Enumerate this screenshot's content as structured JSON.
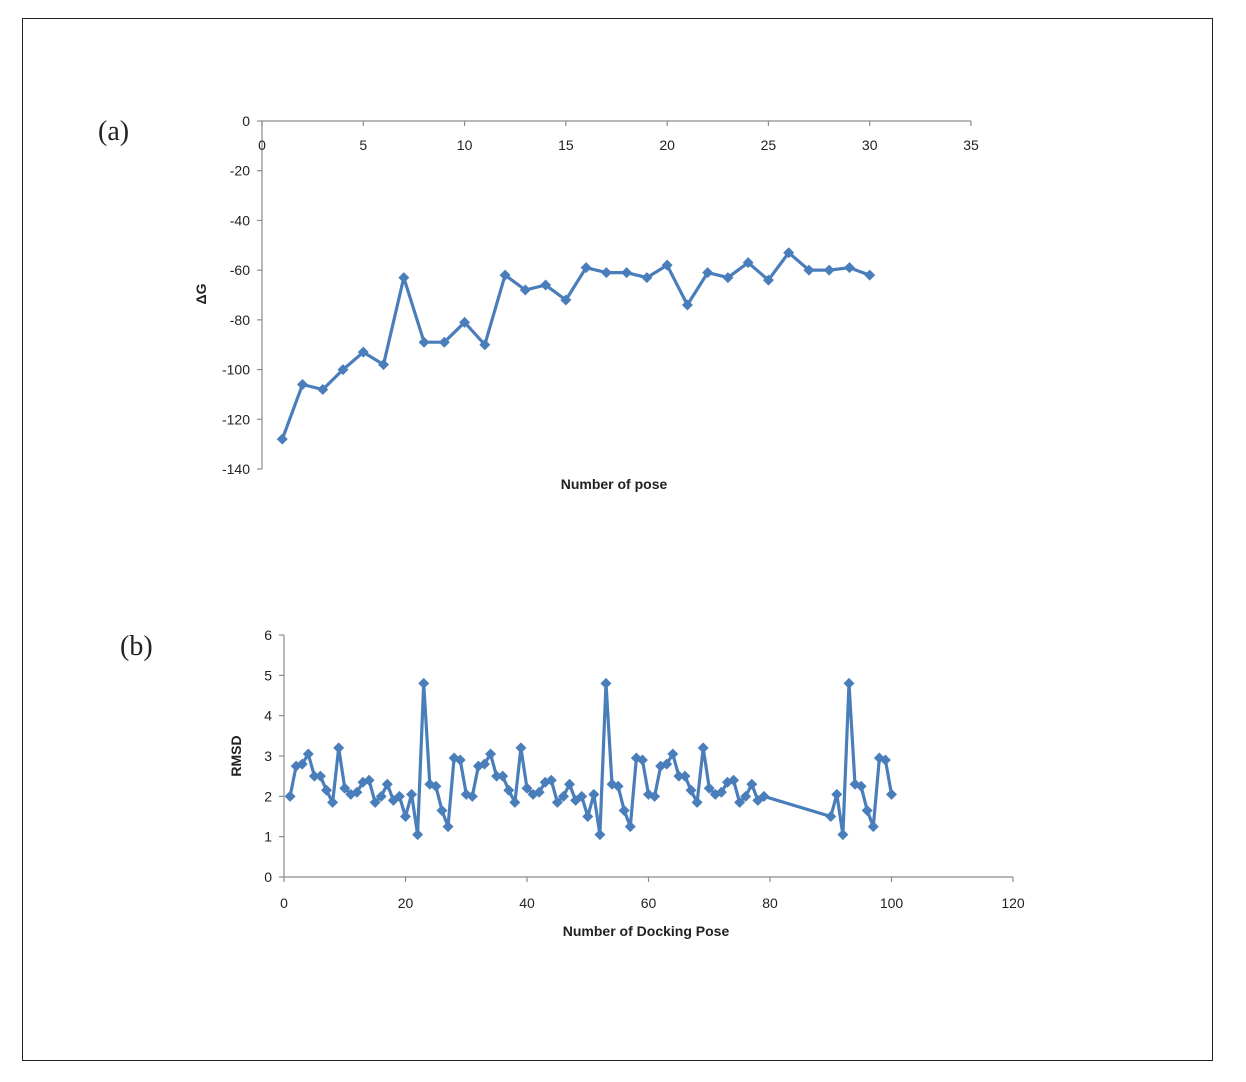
{
  "chart_data": [
    {
      "type": "line",
      "panel_label": "(a)",
      "xlabel": "Number of pose",
      "ylabel": "ΔG",
      "xlim": [
        0,
        35
      ],
      "ylim": [
        -140,
        0
      ],
      "xticks": [
        "0",
        "5",
        "10",
        "15",
        "20",
        "25",
        "30",
        "35"
      ],
      "yticks": [
        "0",
        "-20",
        "-40",
        "-60",
        "-80",
        "-100",
        "-120",
        "-140"
      ],
      "x_axis_position": "top",
      "color": "#4a7ebb",
      "marker": "diamond",
      "grid": false,
      "series": [
        {
          "x": [
            1,
            2,
            3,
            4,
            5,
            6,
            7,
            8,
            9,
            10,
            11,
            12,
            13,
            14,
            15,
            16,
            17,
            18,
            19,
            20,
            21,
            22,
            23,
            24,
            25,
            26,
            27,
            28,
            29,
            30
          ],
          "y": [
            -128,
            -106,
            -108,
            -100,
            -93,
            -98,
            -63,
            -89,
            -89,
            -81,
            -90,
            -62,
            -68,
            -66,
            -72,
            -59,
            -61,
            -61,
            -63,
            -58,
            -74,
            -61,
            -63,
            -57,
            -64,
            -53,
            -60,
            -60,
            -59,
            -62
          ]
        }
      ]
    },
    {
      "type": "line",
      "panel_label": "(b)",
      "xlabel": "Number of Docking Pose",
      "ylabel": "RMSD",
      "xlim": [
        0,
        120
      ],
      "ylim": [
        0,
        6
      ],
      "xticks": [
        "0",
        "20",
        "40",
        "60",
        "80",
        "100",
        "120"
      ],
      "yticks": [
        "0",
        "1",
        "2",
        "3",
        "4",
        "5",
        "6"
      ],
      "x_axis_position": "bottom",
      "color": "#4a7ebb",
      "marker": "diamond",
      "grid": false,
      "series": [
        {
          "x": [
            1,
            2,
            3,
            4,
            5,
            6,
            7,
            8,
            9,
            10,
            11,
            12,
            13,
            14,
            15,
            16,
            17,
            18,
            19,
            20,
            21,
            22,
            23,
            24,
            25,
            26,
            27,
            28,
            29,
            30,
            31,
            32,
            33,
            34,
            35,
            36,
            37,
            38,
            39,
            40,
            41,
            42,
            43,
            44,
            45,
            46,
            47,
            48,
            49,
            50,
            51,
            52,
            53,
            54,
            55,
            56,
            57,
            58,
            59,
            60,
            61,
            62,
            63,
            64,
            65,
            66,
            67,
            68,
            69,
            70,
            71,
            72,
            73,
            74,
            75,
            76,
            77,
            78,
            79,
            90,
            91,
            92,
            93,
            94,
            95,
            96,
            97,
            98,
            99,
            100
          ],
          "y": [
            2.0,
            2.75,
            2.8,
            3.05,
            2.5,
            2.5,
            2.15,
            1.85,
            3.2,
            2.2,
            2.05,
            2.1,
            2.35,
            2.4,
            1.85,
            2.0,
            2.3,
            1.9,
            2.0,
            1.5,
            2.05,
            1.05,
            4.8,
            2.3,
            2.25,
            1.65,
            1.25,
            2.95,
            2.9,
            2.05,
            2.0,
            2.75,
            2.8,
            3.05,
            2.5,
            2.5,
            2.15,
            1.85,
            3.2,
            2.2,
            2.05,
            2.1,
            2.35,
            2.4,
            1.85,
            2.0,
            2.3,
            1.9,
            2.0,
            1.5,
            2.05,
            1.05,
            4.8,
            2.3,
            2.25,
            1.65,
            1.25,
            2.95,
            2.9,
            2.05,
            2.0,
            2.75,
            2.8,
            3.05,
            2.5,
            2.5,
            2.15,
            1.85,
            3.2,
            2.2,
            2.05,
            2.1,
            2.35,
            2.4,
            1.85,
            2.0,
            2.3,
            1.9,
            2.0,
            1.5,
            2.05,
            1.05,
            4.8,
            2.3,
            2.25,
            1.65,
            1.25,
            2.95,
            2.9,
            2.05
          ]
        }
      ]
    }
  ]
}
